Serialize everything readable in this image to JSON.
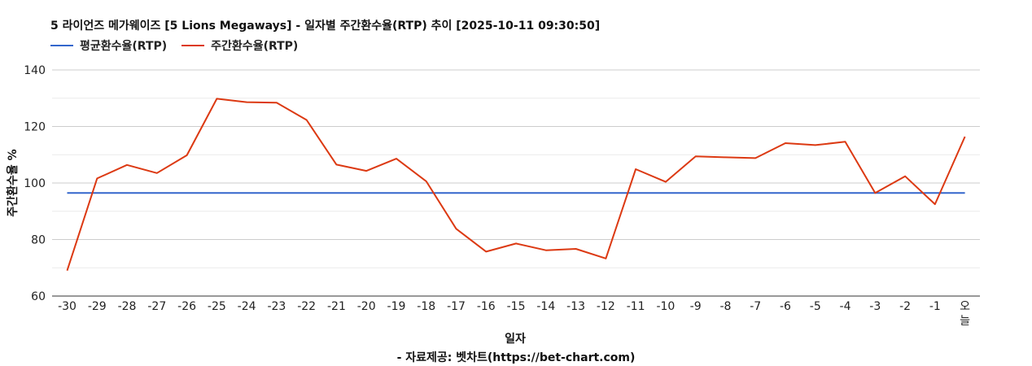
{
  "chart_data": {
    "type": "line",
    "title": "5 라이언즈 메가웨이즈 [5 Lions Megaways] - 일자별 주간환수율(RTP) 추이 [2025-10-11 09:30:50]",
    "xlabel": "일자",
    "ylabel": "주간환수율 %",
    "ylim": [
      60,
      140
    ],
    "yticks": [
      60,
      80,
      100,
      120,
      140
    ],
    "grid": true,
    "legend_position": "top-left",
    "categories": [
      "-30",
      "-29",
      "-28",
      "-27",
      "-26",
      "-25",
      "-24",
      "-23",
      "-22",
      "-21",
      "-20",
      "-19",
      "-18",
      "-17",
      "-16",
      "-15",
      "-14",
      "-13",
      "-12",
      "-11",
      "-10",
      "-9",
      "-8",
      "-7",
      "-6",
      "-5",
      "-4",
      "-3",
      "-2",
      "-1",
      "오늘"
    ],
    "series": [
      {
        "name": "평균환수율(RTP)",
        "color": "#3366cc",
        "values": [
          96.5,
          96.5,
          96.5,
          96.5,
          96.5,
          96.5,
          96.5,
          96.5,
          96.5,
          96.5,
          96.5,
          96.5,
          96.5,
          96.5,
          96.5,
          96.5,
          96.5,
          96.5,
          96.5,
          96.5,
          96.5,
          96.5,
          96.5,
          96.5,
          96.5,
          96.5,
          96.5,
          96.5,
          96.5,
          96.5,
          96.5
        ]
      },
      {
        "name": "주간환수율(RTP)",
        "color": "#dc3912",
        "values": [
          69,
          101.6,
          106.4,
          103.5,
          109.8,
          129.8,
          128.6,
          128.4,
          122.3,
          106.5,
          104.3,
          108.6,
          100.6,
          83.8,
          75.7,
          78.6,
          76.2,
          76.7,
          73.3,
          104.9,
          100.4,
          109.4,
          109.1,
          108.8,
          114.1,
          113.4,
          114.6,
          96.5,
          102.4,
          92.5,
          116.4
        ]
      }
    ]
  },
  "source_text": "- 자료제공: 벳차트(https://bet-chart.com)"
}
